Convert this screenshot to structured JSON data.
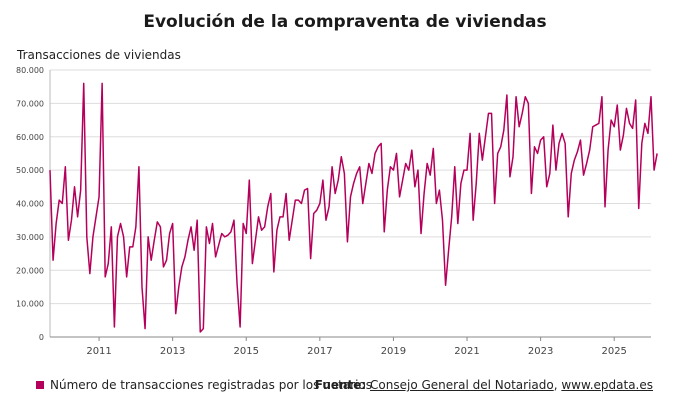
{
  "title": "Evolución de la compraventa de viviendas",
  "legend_label": "Número de transacciones registradas por los notarios",
  "source": {
    "label": "Fuente:",
    "publisher": "Consejo General del Notariado",
    "separator": ", ",
    "site": "www.epdata.es"
  },
  "chart_data": {
    "type": "line",
    "ylabel": "Transacciones de viviendas",
    "ylim": [
      0,
      80000
    ],
    "xlim": [
      "2009-09",
      "2026-01"
    ],
    "y_ticks": [
      0,
      10000,
      20000,
      30000,
      40000,
      50000,
      60000,
      70000,
      80000
    ],
    "y_tick_labels": [
      "0",
      "10.000",
      "20.000",
      "30.000",
      "40.000",
      "50.000",
      "60.000",
      "70.000",
      "80.000"
    ],
    "x_ticks": [
      "2011-01",
      "2013-01",
      "2015-01",
      "2017-01",
      "2019-01",
      "2021-01",
      "2023-01",
      "2025-01"
    ],
    "x_tick_labels": [
      "2011",
      "2013",
      "2015",
      "2017",
      "2019",
      "2021",
      "2023",
      "2025"
    ],
    "grid": true,
    "legend_position": "bottom",
    "color": "#b5005b",
    "start": "2009-09",
    "values": [
      50000,
      23000,
      34000,
      41000,
      40000,
      51000,
      29000,
      35000,
      45000,
      36000,
      44000,
      76000,
      30000,
      19000,
      30000,
      36000,
      42000,
      76000,
      18000,
      22000,
      33000,
      3000,
      30000,
      34000,
      30000,
      18000,
      27000,
      27000,
      33000,
      51000,
      15000,
      2500,
      30000,
      23000,
      29000,
      34500,
      33000,
      21000,
      23000,
      31000,
      34000,
      7000,
      15000,
      21000,
      24000,
      29000,
      33000,
      26000,
      35000,
      1500,
      2500,
      33000,
      28000,
      34000,
      24000,
      27500,
      31000,
      30000,
      30500,
      31500,
      35000,
      16000,
      3000,
      34000,
      31000,
      47000,
      22000,
      29000,
      36000,
      32000,
      33000,
      39000,
      43000,
      19500,
      32000,
      36000,
      36000,
      43000,
      29000,
      35000,
      41000,
      41000,
      40000,
      44000,
      44500,
      23500,
      37000,
      38000,
      40000,
      47000,
      35000,
      39000,
      51000,
      43000,
      47000,
      54000,
      49000,
      28500,
      42000,
      46000,
      49000,
      51000,
      40000,
      46000,
      52000,
      49000,
      55000,
      57000,
      58000,
      31500,
      44000,
      51000,
      50000,
      55000,
      42000,
      47000,
      52000,
      50000,
      56000,
      45000,
      50000,
      31000,
      43000,
      52000,
      48500,
      56500,
      40000,
      44000,
      35000,
      15500,
      26000,
      36000,
      51000,
      34000,
      46000,
      50000,
      50000,
      61000,
      35000,
      46000,
      61000,
      53000,
      60000,
      67000,
      67000,
      40000,
      55000,
      57000,
      62000,
      72500,
      48000,
      54000,
      72000,
      63000,
      67000,
      72000,
      70000,
      43000,
      57000,
      55000,
      59000,
      60000,
      45000,
      49000,
      63500,
      50000,
      58000,
      61000,
      58000,
      36000,
      49000,
      53000,
      55500,
      59000,
      48500,
      52000,
      56000,
      63000,
      63500,
      64000,
      72000,
      39000,
      56000,
      65000,
      63000,
      69500,
      56000,
      60500,
      68500,
      64000,
      62500,
      71000,
      38500,
      58000,
      64000,
      61000,
      72000,
      50000,
      55000
    ]
  }
}
